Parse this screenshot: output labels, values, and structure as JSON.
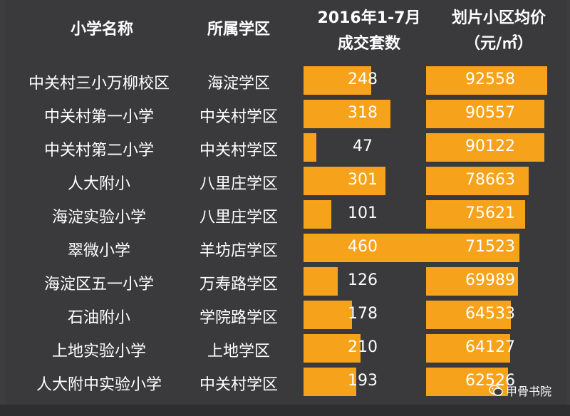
{
  "headers": {
    "school": "小学名称",
    "district": "所属学区",
    "deals_line1": "2016年1-7月",
    "deals_line2": "成交套数",
    "price_line1": "划片小区均价",
    "price_line2": "（元/㎡）"
  },
  "watermark": "甲骨书院",
  "chart_data": {
    "type": "table",
    "title": "",
    "columns": [
      "小学名称",
      "所属学区",
      "2016年1-7月成交套数",
      "划片小区均价（元/㎡）"
    ],
    "deals_range": [
      0,
      460
    ],
    "price_range": [
      0,
      92558
    ],
    "rows": [
      {
        "school": "中关村三小万柳校区",
        "district": "海淀学区",
        "deals": 248,
        "price": 92558
      },
      {
        "school": "中关村第一小学",
        "district": "中关村学区",
        "deals": 318,
        "price": 90557
      },
      {
        "school": "中关村第二小学",
        "district": "中关村学区",
        "deals": 47,
        "price": 90122
      },
      {
        "school": "人大附小",
        "district": "八里庄学区",
        "deals": 301,
        "price": 78663
      },
      {
        "school": "海淀实验小学",
        "district": "八里庄学区",
        "deals": 101,
        "price": 75621
      },
      {
        "school": "翠微小学",
        "district": "羊坊店学区",
        "deals": 460,
        "price": 71523
      },
      {
        "school": "海淀区五一小学",
        "district": "万寿路学区",
        "deals": 126,
        "price": 69989
      },
      {
        "school": "石油附小",
        "district": "学院路学区",
        "deals": 178,
        "price": 64533
      },
      {
        "school": "上地实验小学",
        "district": "上地学区",
        "deals": 210,
        "price": 64127
      },
      {
        "school": "人大附中实验小学",
        "district": "中关村学区",
        "deals": 193,
        "price": 62526
      }
    ],
    "bar_color": "#f7a21b"
  }
}
